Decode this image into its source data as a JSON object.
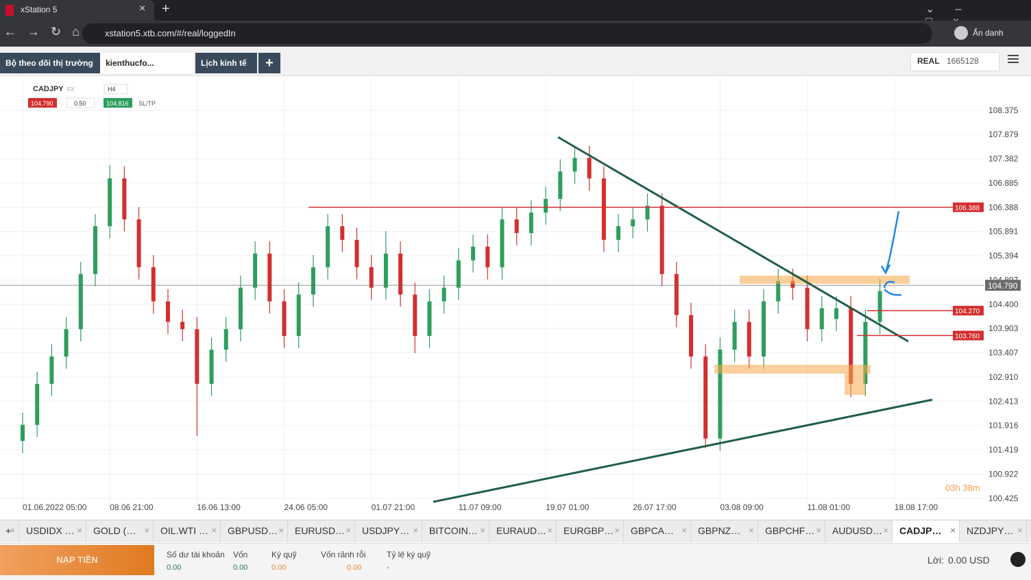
{
  "browser": {
    "tab_title": "xStation 5",
    "url": "xstation5.xtb.com/#/real/loggedIn",
    "profile": "Ẩn danh"
  },
  "top_tabs": [
    "Bộ theo dõi thị trường",
    "kienthucfo...",
    "Lịch kinh tế"
  ],
  "account": {
    "mode": "REAL",
    "number": "1665128"
  },
  "toolbar": {
    "symbol": "CADJPY",
    "market": "FX",
    "interval": "H4",
    "bid": "104.790",
    "volume": "0.50",
    "ask": "104.816",
    "sltp": "SL/TP"
  },
  "chart_data": {
    "type": "candlestick",
    "up_color": "#2e9e5e",
    "down_color": "#d32f2f",
    "grid": true,
    "xlim": [
      0,
      61
    ],
    "xticks": [
      {
        "value": 0,
        "label": "01.06.2022 05:00"
      },
      {
        "value": 6,
        "label": "08.06 21:00"
      },
      {
        "value": 12,
        "label": "16.06 13:00"
      },
      {
        "value": 18,
        "label": "24.06 05:00"
      },
      {
        "value": 24,
        "label": "01.07 21:00"
      },
      {
        "value": 30,
        "label": "11.07 09:00"
      },
      {
        "value": 36,
        "label": "19.07 01:00"
      },
      {
        "value": 42,
        "label": "26.07 17:00"
      },
      {
        "value": 48,
        "label": "03.08 09:00"
      },
      {
        "value": 54,
        "label": "11.08 01:00"
      },
      {
        "value": 60,
        "label": "18.08 17:00"
      }
    ],
    "ylim": [
      100.31,
      109.02
    ],
    "yticks": [
      100.425,
      100.922,
      101.419,
      101.916,
      102.413,
      {
        "value": 102.91,
        "label": "102.910"
      },
      103.407,
      103.903,
      {
        "value": 104.4,
        "label": "104.400"
      },
      104.897,
      105.394,
      105.891,
      106.388,
      106.885,
      107.382,
      107.879,
      108.375
    ],
    "x": [
      0,
      1,
      2,
      3,
      4,
      5,
      6,
      7,
      8,
      9,
      10,
      11,
      12,
      13,
      14,
      15,
      16,
      17,
      18,
      19,
      20,
      21,
      22,
      23,
      24,
      25,
      26,
      27,
      28,
      29,
      30,
      31,
      32,
      33,
      34,
      35,
      36,
      37,
      38,
      39,
      40,
      41,
      42,
      43,
      44,
      45,
      46,
      47,
      48,
      49,
      50,
      51,
      52,
      53,
      54,
      55,
      56,
      57,
      58,
      59
    ],
    "open": [
      101.6,
      101.93,
      102.77,
      103.33,
      103.89,
      105.02,
      106.0,
      106.98,
      106.14,
      105.16,
      104.46,
      104.04,
      103.89,
      102.77,
      103.47,
      103.89,
      104.74,
      105.44,
      104.46,
      103.75,
      104.6,
      105.16,
      106.0,
      105.72,
      105.16,
      104.74,
      105.44,
      104.6,
      103.75,
      104.46,
      104.74,
      105.3,
      105.58,
      105.16,
      106.14,
      105.86,
      106.28,
      106.56,
      107.12,
      107.4,
      106.98,
      105.72,
      106.0,
      106.14,
      106.42,
      105.02,
      104.18,
      103.33,
      101.65,
      103.47,
      104.04,
      103.33,
      104.46,
      104.88,
      104.74,
      103.89,
      104.1,
      104.32,
      102.77,
      104.04
    ],
    "high": [
      102.18,
      103.02,
      103.58,
      104.14,
      105.27,
      106.25,
      107.25,
      107.23,
      106.39,
      105.41,
      104.71,
      104.29,
      104.14,
      103.72,
      104.14,
      104.99,
      105.69,
      105.69,
      104.71,
      104.85,
      105.41,
      106.25,
      106.25,
      105.97,
      105.41,
      105.9,
      105.69,
      104.85,
      104.71,
      104.99,
      105.55,
      105.83,
      105.83,
      106.39,
      106.39,
      106.53,
      106.81,
      107.37,
      107.6,
      107.65,
      107.23,
      106.25,
      106.39,
      106.67,
      106.67,
      105.27,
      104.43,
      103.58,
      103.72,
      104.29,
      104.29,
      104.71,
      105.13,
      105.13,
      104.99,
      104.57,
      104.57,
      104.57,
      104.29,
      104.92
    ],
    "low": [
      101.35,
      101.68,
      102.52,
      103.08,
      103.64,
      104.77,
      105.75,
      105.89,
      104.91,
      104.21,
      103.79,
      103.64,
      101.7,
      102.52,
      103.22,
      103.64,
      104.49,
      104.21,
      103.5,
      103.5,
      104.35,
      104.91,
      105.47,
      104.91,
      104.49,
      104.49,
      104.35,
      103.4,
      103.5,
      104.21,
      104.49,
      105.05,
      104.91,
      104.91,
      105.61,
      105.61,
      106.03,
      106.31,
      106.87,
      106.73,
      105.47,
      105.47,
      105.75,
      105.89,
      104.77,
      103.93,
      103.08,
      101.45,
      101.4,
      103.22,
      103.08,
      103.08,
      104.21,
      104.49,
      103.64,
      103.64,
      103.85,
      102.5,
      102.52,
      103.79
    ],
    "close": [
      101.93,
      102.77,
      103.33,
      103.89,
      105.02,
      106.0,
      106.98,
      106.14,
      105.16,
      104.46,
      104.04,
      103.89,
      102.77,
      103.47,
      103.89,
      104.74,
      105.44,
      104.46,
      103.75,
      104.6,
      105.16,
      106.0,
      105.72,
      105.16,
      104.74,
      105.44,
      104.6,
      103.75,
      104.46,
      104.74,
      105.3,
      105.58,
      105.16,
      106.14,
      105.86,
      106.28,
      106.56,
      107.12,
      107.4,
      106.98,
      105.72,
      106.0,
      106.14,
      106.42,
      105.02,
      104.18,
      103.33,
      101.65,
      103.47,
      104.04,
      103.33,
      104.46,
      104.88,
      104.74,
      103.89,
      104.32,
      104.32,
      102.77,
      104.04,
      104.67
    ],
    "price_lines": [
      {
        "value": 106.388,
        "label": "106.388",
        "color": "#d32f2f"
      },
      {
        "value": 104.27,
        "label": "104.270",
        "color": "#d32f2f"
      },
      {
        "value": 103.76,
        "label": "103.760",
        "color": "#d32f2f"
      }
    ],
    "current_price": {
      "value": 104.79,
      "label": "104.790",
      "color": "#6b6b6b"
    },
    "timer": "03h 38m"
  },
  "instrument_tabs": {
    "items": [
      "USDIDX …",
      "GOLD (…",
      "OIL.WTI …",
      "GBPUSD…",
      "EURUSD…",
      "USDJPY…",
      "BITCOIN…",
      "EURAUD…",
      "EURGBP…",
      "GBPCA…",
      "GBPNZ…",
      "GBPCHF…",
      "AUDUSD…",
      "CADJP…",
      "NZDJPY…"
    ],
    "active": 13
  },
  "footer": {
    "deposit": "NẠP TIỀN",
    "fields": [
      {
        "label": "Số dư tài khoản",
        "value": "0.00"
      },
      {
        "label": "Vốn",
        "value": "0.00"
      },
      {
        "label": "Ký quỹ",
        "value": "0.00"
      },
      {
        "label": "Vốn rảnh rỗi",
        "value": "0.00"
      },
      {
        "label": "Tỷ lệ ký quỹ",
        "value": "-"
      }
    ],
    "profit_label": "Lời:",
    "profit": "0.00 USD"
  }
}
